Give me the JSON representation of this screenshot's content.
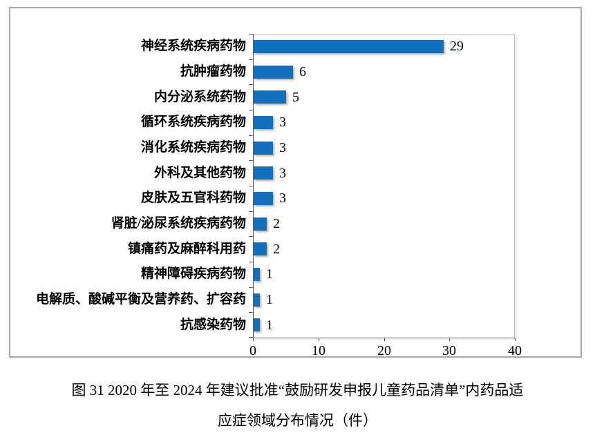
{
  "chart_data": {
    "type": "bar",
    "orientation": "horizontal",
    "categories": [
      "神经系统疾病药物",
      "抗肿瘤药物",
      "内分泌系统药物",
      "循环系统疾病药物",
      "消化系统疾病药物",
      "外科及其他药物",
      "皮肤及五官科药物",
      "肾脏/泌尿系统疾病药物",
      "镇痛药及麻醉科用药",
      "精神障碍疾病药物",
      "电解质、酸碱平衡及营养药、扩容药",
      "抗感染药物"
    ],
    "values": [
      29,
      6,
      5,
      3,
      3,
      3,
      3,
      2,
      2,
      1,
      1,
      1
    ],
    "xlim": [
      0,
      40
    ],
    "xticks": [
      0,
      10,
      20,
      30,
      40
    ],
    "grid": false,
    "legend": "none",
    "data_labels": true,
    "bar_color": "#1270BC",
    "axis_color": "#595959",
    "plot_border_color": "#bfbfbf",
    "box_border_color": "#a7a7a7",
    "text_color": "#000000"
  },
  "caption": {
    "line1": "图 31  2020 年至 2024 年建议批准“鼓励研发申报儿童药品清单”内药品适",
    "line2": "应症领域分布情况（件）"
  }
}
